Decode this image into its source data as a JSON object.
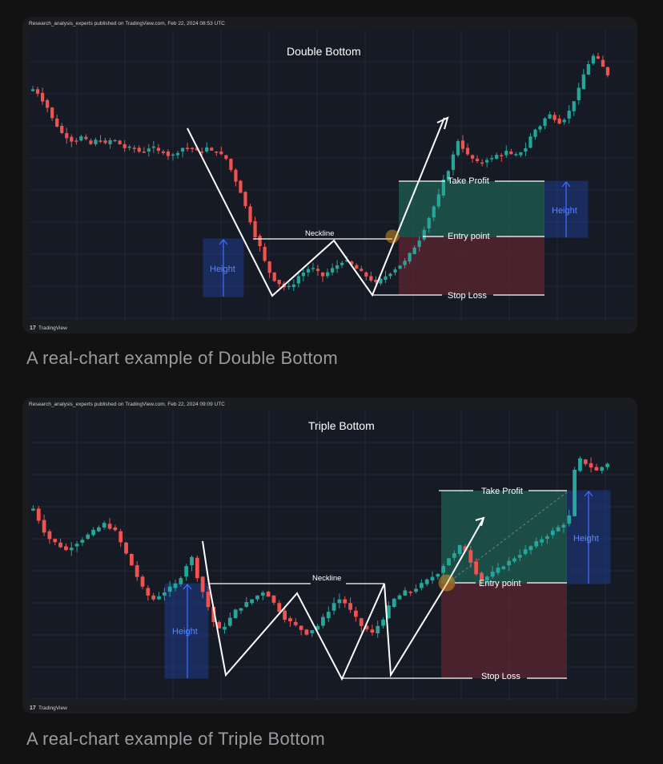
{
  "charts": [
    {
      "publisher": "Research_analysis_experts published on TradingView.com, Feb 22, 2024 08:53 UTC",
      "title": "Double Bottom",
      "labels": {
        "neckline": "Neckline",
        "take_profit": "Take Profit",
        "entry": "Entry point",
        "stop_loss": "Stop Loss",
        "height_left": "Height",
        "height_right": "Height"
      },
      "brand": "TradingView",
      "caption": "A real-chart example of Double Bottom"
    },
    {
      "publisher": "Research_analysis_experts published on TradingView.com, Feb 22, 2024 09:09 UTC",
      "title": "Triple Bottom",
      "labels": {
        "neckline": "Neckline",
        "take_profit": "Take Profit",
        "entry": "Entry point",
        "stop_loss": "Stop Loss",
        "height_left": "Height",
        "height_right": "Height"
      },
      "brand": "TradingView",
      "caption": "A real-chart example of Triple Bottom"
    }
  ],
  "colors": {
    "up": "#26a69a",
    "down": "#ef5350",
    "height_box": "#2962ff",
    "profit_zone": "#1f5e52",
    "loss_zone": "#5c2630",
    "pattern_line": "#ffffff"
  },
  "chart_data": [
    {
      "type": "candlestick",
      "title": "Double Bottom",
      "series": [
        {
          "name": "price",
          "values": [
            74,
            73,
            71,
            69,
            66,
            64,
            62,
            61,
            60,
            60,
            61,
            60,
            59,
            60,
            60,
            59,
            60,
            60,
            59,
            58,
            58,
            58,
            57,
            57,
            58,
            58,
            57,
            57,
            56,
            56,
            57,
            58,
            58,
            58,
            57,
            57,
            58,
            57,
            57,
            56,
            55,
            52,
            49,
            46,
            42,
            38,
            34,
            31,
            27,
            24,
            22,
            21,
            20,
            20,
            21,
            23,
            24,
            25,
            25,
            24,
            23,
            24,
            25,
            26,
            27,
            27,
            26,
            25,
            24,
            23,
            22,
            21,
            22,
            23,
            24,
            25,
            26,
            27,
            29,
            31,
            33,
            36,
            39,
            42,
            45,
            49,
            52,
            56,
            60,
            58,
            56,
            55,
            54,
            54,
            55,
            55,
            56,
            56,
            57,
            56,
            56,
            57,
            58,
            61,
            63,
            64,
            66,
            67,
            66,
            65,
            66,
            68,
            71,
            74,
            78,
            81,
            83,
            82,
            80,
            78
          ]
        }
      ],
      "annotations": [
        "Neckline",
        "Take Profit",
        "Entry point",
        "Stop Loss",
        "Height",
        "Height"
      ]
    },
    {
      "type": "candlestick",
      "title": "Triple Bottom",
      "series": [
        {
          "name": "price",
          "values": [
            62,
            59,
            56,
            54,
            53,
            52,
            51,
            52,
            53,
            54,
            55,
            56,
            57,
            58,
            57,
            56,
            53,
            50,
            47,
            44,
            41,
            39,
            38,
            39,
            40,
            41,
            42,
            44,
            47,
            49,
            44,
            40,
            36,
            32,
            30,
            31,
            33,
            35,
            36,
            37,
            38,
            39,
            40,
            39,
            37,
            35,
            33,
            32,
            31,
            30,
            29,
            30,
            31,
            33,
            35,
            37,
            38,
            37,
            35,
            33,
            31,
            30,
            29,
            31,
            33,
            36,
            38,
            39,
            40,
            40,
            41,
            42,
            43,
            44,
            45,
            47,
            49,
            50,
            52,
            51,
            48,
            45,
            43,
            44,
            45,
            46,
            47,
            48,
            49,
            50,
            51,
            52,
            53,
            54,
            55,
            56,
            57,
            58,
            60,
            72,
            75,
            74,
            73,
            72,
            73,
            74
          ]
        }
      ],
      "annotations": [
        "Neckline",
        "Take Profit",
        "Entry point",
        "Stop Loss",
        "Height",
        "Height"
      ]
    }
  ]
}
